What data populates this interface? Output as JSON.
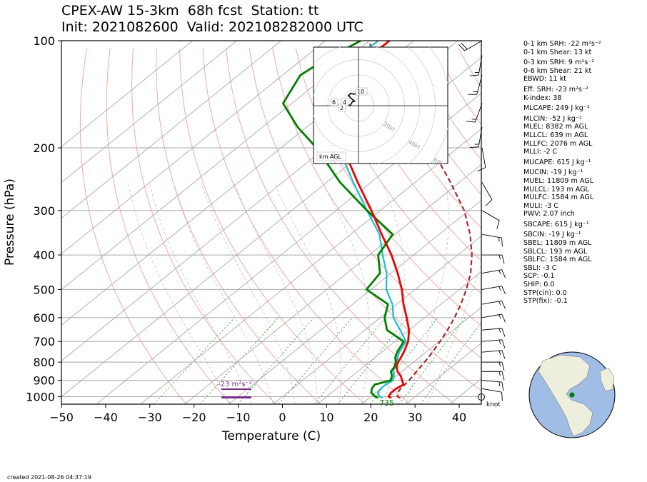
{
  "header": {
    "title_line1": "CPEX-AW 15-3km  68h fcst  Station: tt",
    "title_line2": "Init: 2021082600  Valid: 202108282000 UTC"
  },
  "footer": {
    "created": "created 2021-08-26 04:37:19"
  },
  "params": [
    "0-1 km SRH: -22 m²s⁻²",
    "0-1 km Shear: 13 kt",
    "0-3 km SRH: 9 m²s⁻²",
    "0-6 km Shear: 21 kt",
    "EBWD: 11 kt",
    "Eff. SRH: -23 m²s⁻²",
    "K-index: 38",
    "MLCAPE: 249 J kg⁻¹",
    "MLCIN: -52 J kg⁻¹",
    "MLEL: 8382 m AGL",
    "MLLCL: 639 m AGL",
    "MLLFC: 2076 m AGL",
    "MLLI: -2 C",
    "MUCAPE: 615 J kg⁻¹",
    "MUCIN: -19 J kg⁻¹",
    "MUEL: 11809 m AGL",
    "MULCL: 193 m AGL",
    "MULFC: 1584 m AGL",
    "MULI: -3 C",
    "PWV: 2.07 inch",
    "SBCAPE: 615 J kg⁻¹",
    "SBCIN: -19 J kg⁻¹",
    "SBEL: 11809 m AGL",
    "SBLCL: 193 m AGL",
    "SBLFC: 1584 m AGL",
    "SBLI: -3 C",
    "SCP: -0.1",
    "SHIP: 0.0",
    "STP(cin): 0.0",
    "STP(fix): -0.1"
  ],
  "annotations": {
    "srh_label": "-23 m²s⁻²",
    "surface_value": "735",
    "knot_label": "knot",
    "hodo_ring_labels": [
      "20kt",
      "40kt",
      "60kt",
      "80kt"
    ],
    "hodo_height_labels": [
      "10",
      "6",
      "4",
      "2"
    ],
    "hodo_legend": "km AGL"
  },
  "colors": {
    "temperature": "#ee0000",
    "dewpoint": "#008000",
    "wetbulb": "#17becf",
    "parcel": "#a52a2a",
    "dry_adiabat": "#f4a6a6",
    "mixing_ratio": "#2ca02c",
    "isotherm": "#b0b0b0",
    "srh_bar": "#7b2d8e",
    "globe_ocean": "#a0bde6",
    "globe_land": "#eeeedd",
    "station_marker": "#008000"
  },
  "chart_data": {
    "type": "line",
    "chart_kind": "skew-T log-p sounding",
    "xlabel": "Temperature (C)",
    "ylabel": "Pressure (hPa)",
    "xlim": [
      -50,
      45
    ],
    "ylim": [
      1050,
      100
    ],
    "y_scale": "log",
    "x_ticks": [
      -50,
      -40,
      -30,
      -20,
      -10,
      0,
      10,
      20,
      30,
      40
    ],
    "y_ticks": [
      100,
      200,
      300,
      400,
      500,
      600,
      700,
      800,
      900,
      1000
    ],
    "grid": true,
    "pressure": [
      1008,
      1000,
      975,
      950,
      925,
      900,
      875,
      850,
      825,
      800,
      775,
      750,
      700,
      650,
      600,
      550,
      500,
      450,
      400,
      350,
      300,
      250,
      200,
      175,
      150,
      125,
      115,
      100
    ],
    "series": [
      {
        "key": "temperature",
        "values": [
          25.0,
          24.0,
          23.5,
          23.5,
          24.0,
          22.5,
          21.0,
          19.0,
          17.5,
          16.5,
          15.8,
          15.0,
          13.0,
          10.0,
          6.0,
          1.5,
          -3.0,
          -8.5,
          -15.0,
          -23.0,
          -32.0,
          -43.0,
          -56.0,
          -63.0,
          -69.0,
          -74.0,
          -75.5,
          -75.5
        ]
      },
      {
        "key": "dewpoint",
        "values": [
          22.0,
          21.0,
          19.0,
          18.0,
          17.5,
          20.0,
          19.0,
          17.5,
          17.0,
          16.0,
          14.5,
          13.5,
          12.0,
          5.0,
          1.0,
          -2.0,
          -11.0,
          -12.5,
          -18.0,
          -20.5,
          -33.0,
          -47.0,
          -62.0,
          -72.0,
          -82.0,
          -86.0,
          -85.0,
          -82.0
        ]
      },
      {
        "key": "wetbulb",
        "values": [
          23.0,
          22.0,
          20.5,
          20.0,
          20.0,
          20.5,
          19.5,
          18.0,
          17.2,
          16.2,
          15.0,
          14.0,
          12.5,
          8.0,
          3.0,
          -1.0,
          -6.5,
          -11.0,
          -17.0,
          -23.5,
          -33.0,
          -44.0,
          -57.0,
          -64.0,
          -71.0,
          -77.0,
          -78.5,
          -78.0
        ]
      },
      {
        "key": "parcel",
        "values": [
          27.0,
          26.0,
          25.0,
          24.5,
          24.3,
          24.1,
          23.7,
          23.3,
          22.9,
          22.5,
          22.0,
          21.5,
          20.2,
          18.7,
          16.8,
          14.5,
          11.6,
          8.0,
          3.2,
          -3.0,
          -11.0,
          -22.0,
          -36.0,
          -45.0,
          -55.5,
          -67.0,
          -73.0,
          -80.0
        ]
      }
    ],
    "wind_barbs": [
      {
        "p": 1000,
        "speed_kt": 0,
        "calm": true
      },
      {
        "p": 950,
        "speed_kt": 10,
        "dir_deg": 100
      },
      {
        "p": 900,
        "speed_kt": 15,
        "dir_deg": 95
      },
      {
        "p": 850,
        "speed_kt": 15,
        "dir_deg": 90
      },
      {
        "p": 800,
        "speed_kt": 15,
        "dir_deg": 90
      },
      {
        "p": 750,
        "speed_kt": 15,
        "dir_deg": 85
      },
      {
        "p": 700,
        "speed_kt": 15,
        "dir_deg": 85
      },
      {
        "p": 650,
        "speed_kt": 15,
        "dir_deg": 85
      },
      {
        "p": 600,
        "speed_kt": 15,
        "dir_deg": 80
      },
      {
        "p": 550,
        "speed_kt": 15,
        "dir_deg": 80
      },
      {
        "p": 500,
        "speed_kt": 15,
        "dir_deg": 80
      },
      {
        "p": 450,
        "speed_kt": 15,
        "dir_deg": 80
      },
      {
        "p": 400,
        "speed_kt": 15,
        "dir_deg": 90
      },
      {
        "p": 350,
        "speed_kt": 15,
        "dir_deg": 100
      },
      {
        "p": 300,
        "speed_kt": 10,
        "dir_deg": 120
      },
      {
        "p": 250,
        "speed_kt": 10,
        "dir_deg": 150
      },
      {
        "p": 200,
        "speed_kt": 10,
        "dir_deg": 170
      },
      {
        "p": 175,
        "speed_kt": 15,
        "dir_deg": 190
      },
      {
        "p": 150,
        "speed_kt": 15,
        "dir_deg": 200
      },
      {
        "p": 125,
        "speed_kt": 15,
        "dir_deg": 195
      },
      {
        "p": 110,
        "speed_kt": 15,
        "dir_deg": 190
      },
      {
        "p": 100,
        "speed_kt": 20,
        "dir_deg": 240
      }
    ],
    "hodograph": {
      "rings_kt": [
        10,
        20,
        30,
        40,
        50,
        60,
        70,
        80
      ],
      "points": [
        {
          "u": -8.0,
          "v": 0.5
        },
        {
          "u": -7.0,
          "v": 1.0
        },
        {
          "u": -5.5,
          "v": 0.0
        },
        {
          "u": -4.0,
          "v": 2.5
        },
        {
          "u": -2.5,
          "v": 3.0
        },
        {
          "u": -4.5,
          "v": 4.5
        },
        {
          "u": -6.5,
          "v": 6.5
        },
        {
          "u": -5.0,
          "v": 8.0
        },
        {
          "u": -3.0,
          "v": 7.5
        },
        {
          "u": 0.5,
          "v": 8.5
        },
        {
          "u": 1.0,
          "v": 7.0
        }
      ]
    },
    "srh_bar_range_m": [
      0,
      3000
    ],
    "globe_station": {
      "lat": 11,
      "lon": -61
    }
  }
}
